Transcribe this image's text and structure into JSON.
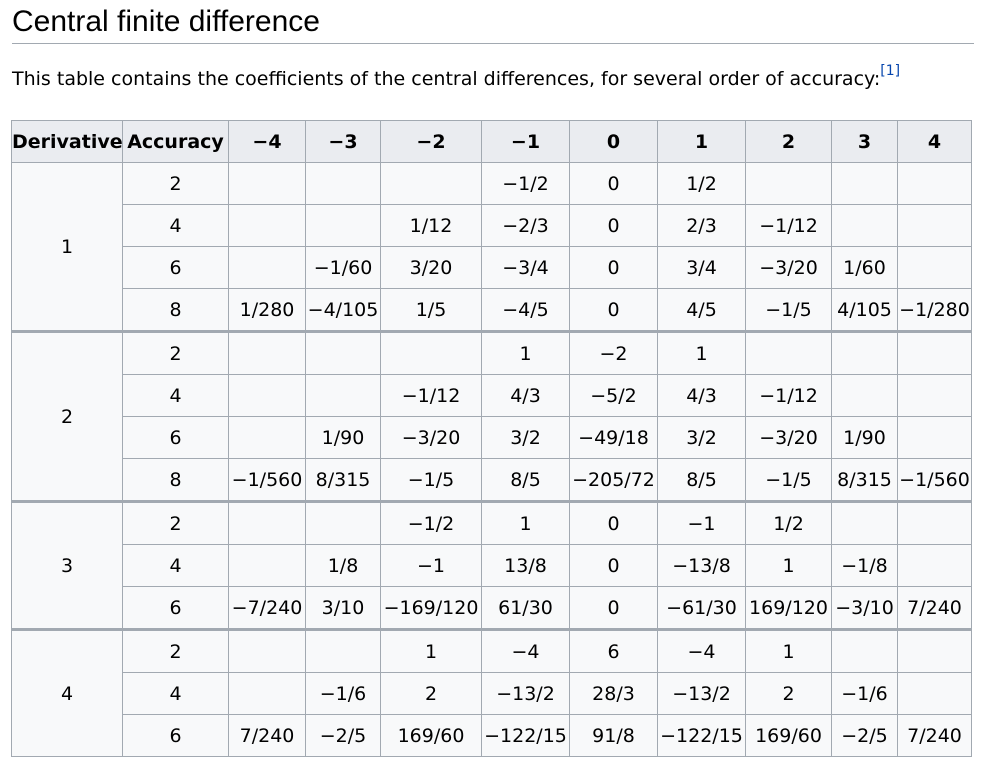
{
  "heading": "Central finite difference",
  "intro": "This table contains the coefficients of the central differences, for several order of accuracy:",
  "intro_ref": "[1]",
  "table": {
    "headers": [
      "Derivative",
      "Accuracy",
      "−4",
      "−3",
      "−2",
      "−1",
      "0",
      "1",
      "2",
      "3",
      "4"
    ],
    "groups": [
      {
        "derivative": "1",
        "rows": [
          {
            "accuracy": "2",
            "cells": [
              "",
              "",
              "",
              "−1/2",
              "0",
              "1/2",
              "",
              "",
              ""
            ]
          },
          {
            "accuracy": "4",
            "cells": [
              "",
              "",
              "1/12",
              "−2/3",
              "0",
              "2/3",
              "−1/12",
              "",
              ""
            ]
          },
          {
            "accuracy": "6",
            "cells": [
              "",
              "−1/60",
              "3/20",
              "−3/4",
              "0",
              "3/4",
              "−3/20",
              "1/60",
              ""
            ]
          },
          {
            "accuracy": "8",
            "cells": [
              "1/280",
              "−4/105",
              "1/5",
              "−4/5",
              "0",
              "4/5",
              "−1/5",
              "4/105",
              "−1/280"
            ]
          }
        ]
      },
      {
        "derivative": "2",
        "rows": [
          {
            "accuracy": "2",
            "cells": [
              "",
              "",
              "",
              "1",
              "−2",
              "1",
              "",
              "",
              ""
            ]
          },
          {
            "accuracy": "4",
            "cells": [
              "",
              "",
              "−1/12",
              "4/3",
              "−5/2",
              "4/3",
              "−1/12",
              "",
              ""
            ]
          },
          {
            "accuracy": "6",
            "cells": [
              "",
              "1/90",
              "−3/20",
              "3/2",
              "−49/18",
              "3/2",
              "−3/20",
              "1/90",
              ""
            ]
          },
          {
            "accuracy": "8",
            "cells": [
              "−1/560",
              "8/315",
              "−1/5",
              "8/5",
              "−205/72",
              "8/5",
              "−1/5",
              "8/315",
              "−1/560"
            ]
          }
        ]
      },
      {
        "derivative": "3",
        "rows": [
          {
            "accuracy": "2",
            "cells": [
              "",
              "",
              "−1/2",
              "1",
              "0",
              "−1",
              "1/2",
              "",
              ""
            ]
          },
          {
            "accuracy": "4",
            "cells": [
              "",
              "1/8",
              "−1",
              "13/8",
              "0",
              "−13/8",
              "1",
              "−1/8",
              ""
            ]
          },
          {
            "accuracy": "6",
            "cells": [
              "−7/240",
              "3/10",
              "−169/120",
              "61/30",
              "0",
              "−61/30",
              "169/120",
              "−3/10",
              "7/240"
            ]
          }
        ]
      },
      {
        "derivative": "4",
        "rows": [
          {
            "accuracy": "2",
            "cells": [
              "",
              "",
              "1",
              "−4",
              "6",
              "−4",
              "1",
              "",
              ""
            ]
          },
          {
            "accuracy": "4",
            "cells": [
              "",
              "−1/6",
              "2",
              "−13/2",
              "28/3",
              "−13/2",
              "2",
              "−1/6",
              ""
            ]
          },
          {
            "accuracy": "6",
            "cells": [
              "7/240",
              "−2/5",
              "169/60",
              "−122/15",
              "91/8",
              "−122/15",
              "169/60",
              "−2/5",
              "7/240"
            ]
          }
        ]
      }
    ]
  }
}
